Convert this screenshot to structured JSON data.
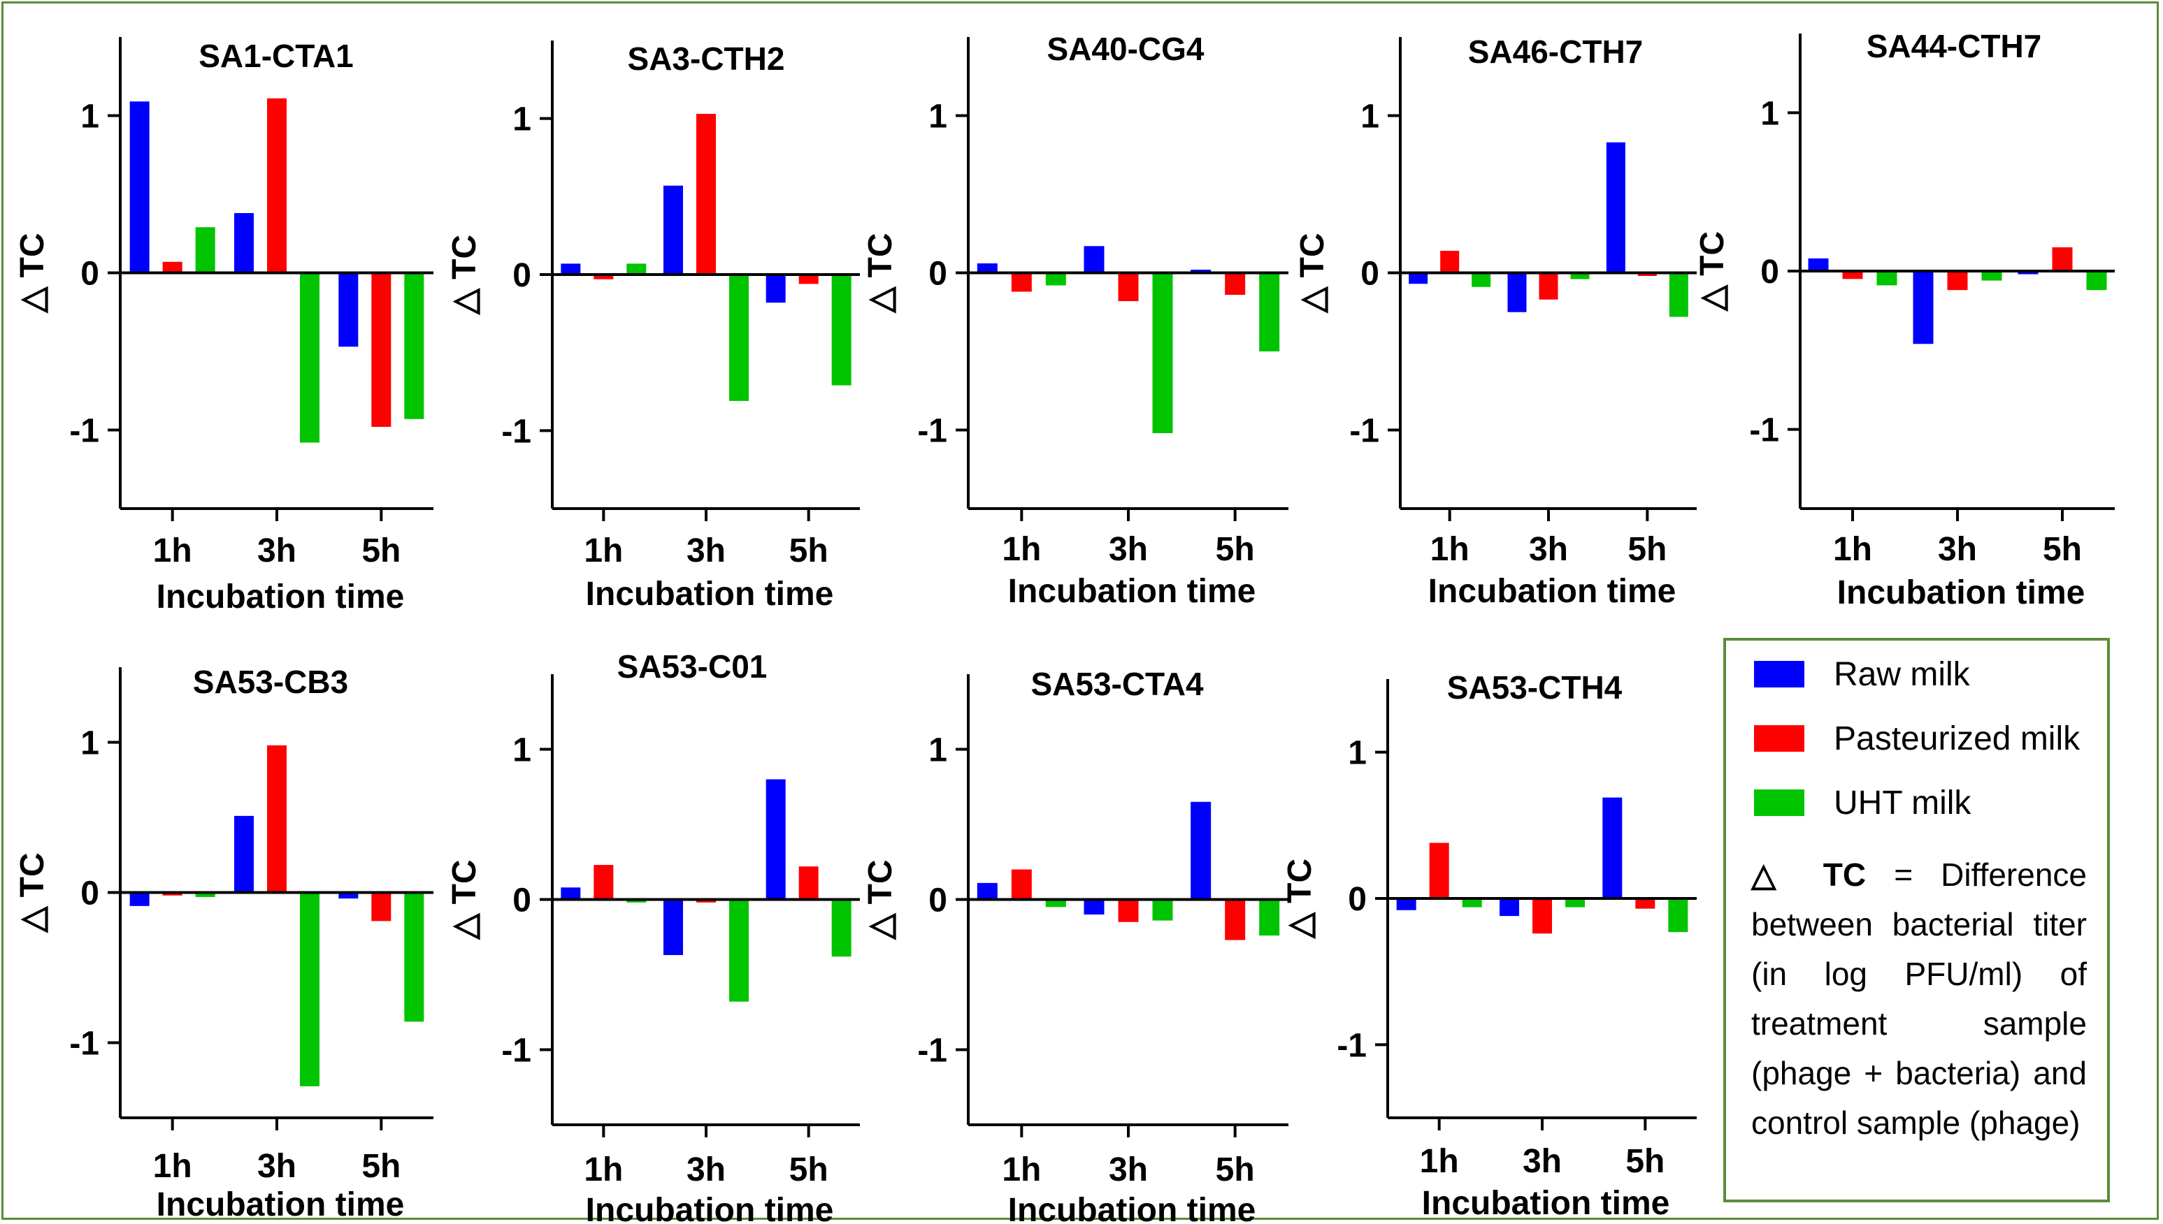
{
  "colors": {
    "raw": "#0000ff",
    "pasteurized": "#ff0000",
    "uht": "#00c400",
    "frame": "#5b8c3a"
  },
  "legend": {
    "items": [
      {
        "label": "Raw milk",
        "color": "#0000ff"
      },
      {
        "label": "Pasteurized milk",
        "color": "#ff0000"
      },
      {
        "label": "UHT milk",
        "color": "#00c400"
      }
    ],
    "note_symbol": "△ TC",
    "note_text": " = Difference between bacterial titer (in log PFU/ml) of treatment sample (phage + bacteria) and control sample (phage)"
  },
  "chart_data": [
    {
      "type": "bar",
      "title": "SA1-CTA1",
      "xlabel": "Incubation time",
      "ylabel": "△ TC",
      "categories": [
        "1h",
        "3h",
        "5h"
      ],
      "ylim": [
        -1.5,
        1.5
      ],
      "yticks": [
        -1,
        0,
        1
      ],
      "series": [
        {
          "name": "Raw milk",
          "values": [
            1.09,
            0.38,
            -0.47
          ]
        },
        {
          "name": "Pasteurized milk",
          "values": [
            0.07,
            1.11,
            -0.98
          ]
        },
        {
          "name": "UHT milk",
          "values": [
            0.29,
            -1.08,
            -0.93
          ]
        }
      ]
    },
    {
      "type": "bar",
      "title": "SA3-CTH2",
      "xlabel": "Incubation time",
      "ylabel": "△ TC",
      "categories": [
        "1h",
        "3h",
        "5h"
      ],
      "ylim": [
        -1.5,
        1.5
      ],
      "yticks": [
        -1,
        0,
        1
      ],
      "series": [
        {
          "name": "Raw milk",
          "values": [
            0.07,
            0.57,
            -0.18
          ]
        },
        {
          "name": "Pasteurized milk",
          "values": [
            -0.03,
            1.03,
            -0.06
          ]
        },
        {
          "name": "UHT milk",
          "values": [
            0.07,
            -0.81,
            -0.71
          ]
        }
      ]
    },
    {
      "type": "bar",
      "title": "SA40-CG4",
      "xlabel": "Incubation time",
      "ylabel": "△ TC",
      "categories": [
        "1h",
        "3h",
        "5h"
      ],
      "ylim": [
        -1.5,
        1.5
      ],
      "yticks": [
        -1,
        0,
        1
      ],
      "series": [
        {
          "name": "Raw milk",
          "values": [
            0.06,
            0.17,
            0.02
          ]
        },
        {
          "name": "Pasteurized milk",
          "values": [
            -0.12,
            -0.18,
            -0.14
          ]
        },
        {
          "name": "UHT milk",
          "values": [
            -0.08,
            -1.02,
            -0.5
          ]
        }
      ]
    },
    {
      "type": "bar",
      "title": "SA46-CTH7",
      "xlabel": "Incubation time",
      "ylabel": "△ TC",
      "categories": [
        "1h",
        "3h",
        "5h"
      ],
      "ylim": [
        -1.5,
        1.5
      ],
      "yticks": [
        -1,
        0,
        1
      ],
      "series": [
        {
          "name": "Raw milk",
          "values": [
            -0.07,
            -0.25,
            0.83
          ]
        },
        {
          "name": "Pasteurized milk",
          "values": [
            0.14,
            -0.17,
            -0.02
          ]
        },
        {
          "name": "UHT milk",
          "values": [
            -0.09,
            -0.04,
            -0.28
          ]
        }
      ]
    },
    {
      "type": "bar",
      "title": "SA44-CTH7",
      "xlabel": "Incubation time",
      "ylabel": "△ TC",
      "categories": [
        "1h",
        "3h",
        "5h"
      ],
      "ylim": [
        -1.5,
        1.5
      ],
      "yticks": [
        -1,
        0,
        1
      ],
      "series": [
        {
          "name": "Raw milk",
          "values": [
            0.08,
            -0.46,
            -0.02
          ]
        },
        {
          "name": "Pasteurized milk",
          "values": [
            -0.05,
            -0.12,
            0.15
          ]
        },
        {
          "name": "UHT milk",
          "values": [
            -0.09,
            -0.06,
            -0.12
          ]
        }
      ]
    },
    {
      "type": "bar",
      "title": "SA53-CB3",
      "xlabel": "Incubation time",
      "ylabel": "△ TC",
      "categories": [
        "1h",
        "3h",
        "5h"
      ],
      "ylim": [
        -1.5,
        1.5
      ],
      "yticks": [
        -1,
        0,
        1
      ],
      "series": [
        {
          "name": "Raw milk",
          "values": [
            -0.09,
            0.51,
            -0.04
          ]
        },
        {
          "name": "Pasteurized milk",
          "values": [
            -0.02,
            0.98,
            -0.19
          ]
        },
        {
          "name": "UHT milk",
          "values": [
            -0.03,
            -1.29,
            -0.86
          ]
        }
      ]
    },
    {
      "type": "bar",
      "title": "SA53-C01",
      "xlabel": "Incubation time",
      "ylabel": "△ TC",
      "categories": [
        "1h",
        "3h",
        "5h"
      ],
      "ylim": [
        -1.5,
        1.5
      ],
      "yticks": [
        -1,
        0,
        1
      ],
      "series": [
        {
          "name": "Raw milk",
          "values": [
            0.08,
            -0.37,
            0.8
          ]
        },
        {
          "name": "Pasteurized milk",
          "values": [
            0.23,
            -0.02,
            0.22
          ]
        },
        {
          "name": "UHT milk",
          "values": [
            -0.02,
            -0.68,
            -0.38
          ]
        }
      ]
    },
    {
      "type": "bar",
      "title": "SA53-CTA4",
      "xlabel": "Incubation time",
      "ylabel": "△ TC",
      "categories": [
        "1h",
        "3h",
        "5h"
      ],
      "ylim": [
        -1.5,
        1.5
      ],
      "yticks": [
        -1,
        0,
        1
      ],
      "series": [
        {
          "name": "Raw milk",
          "values": [
            0.11,
            -0.1,
            0.65
          ]
        },
        {
          "name": "Pasteurized milk",
          "values": [
            0.2,
            -0.15,
            -0.27
          ]
        },
        {
          "name": "UHT milk",
          "values": [
            -0.05,
            -0.14,
            -0.24
          ]
        }
      ]
    },
    {
      "type": "bar",
      "title": "SA53-CTH4",
      "xlabel": "Incubation time",
      "ylabel": "△ TC",
      "categories": [
        "1h",
        "3h",
        "5h"
      ],
      "ylim": [
        -1.5,
        1.5
      ],
      "yticks": [
        -1,
        0,
        1
      ],
      "series": [
        {
          "name": "Raw milk",
          "values": [
            -0.08,
            -0.12,
            0.69
          ]
        },
        {
          "name": "Pasteurized milk",
          "values": [
            0.38,
            -0.24,
            -0.07
          ]
        },
        {
          "name": "UHT milk",
          "values": [
            -0.06,
            -0.06,
            -0.23
          ]
        }
      ]
    }
  ]
}
